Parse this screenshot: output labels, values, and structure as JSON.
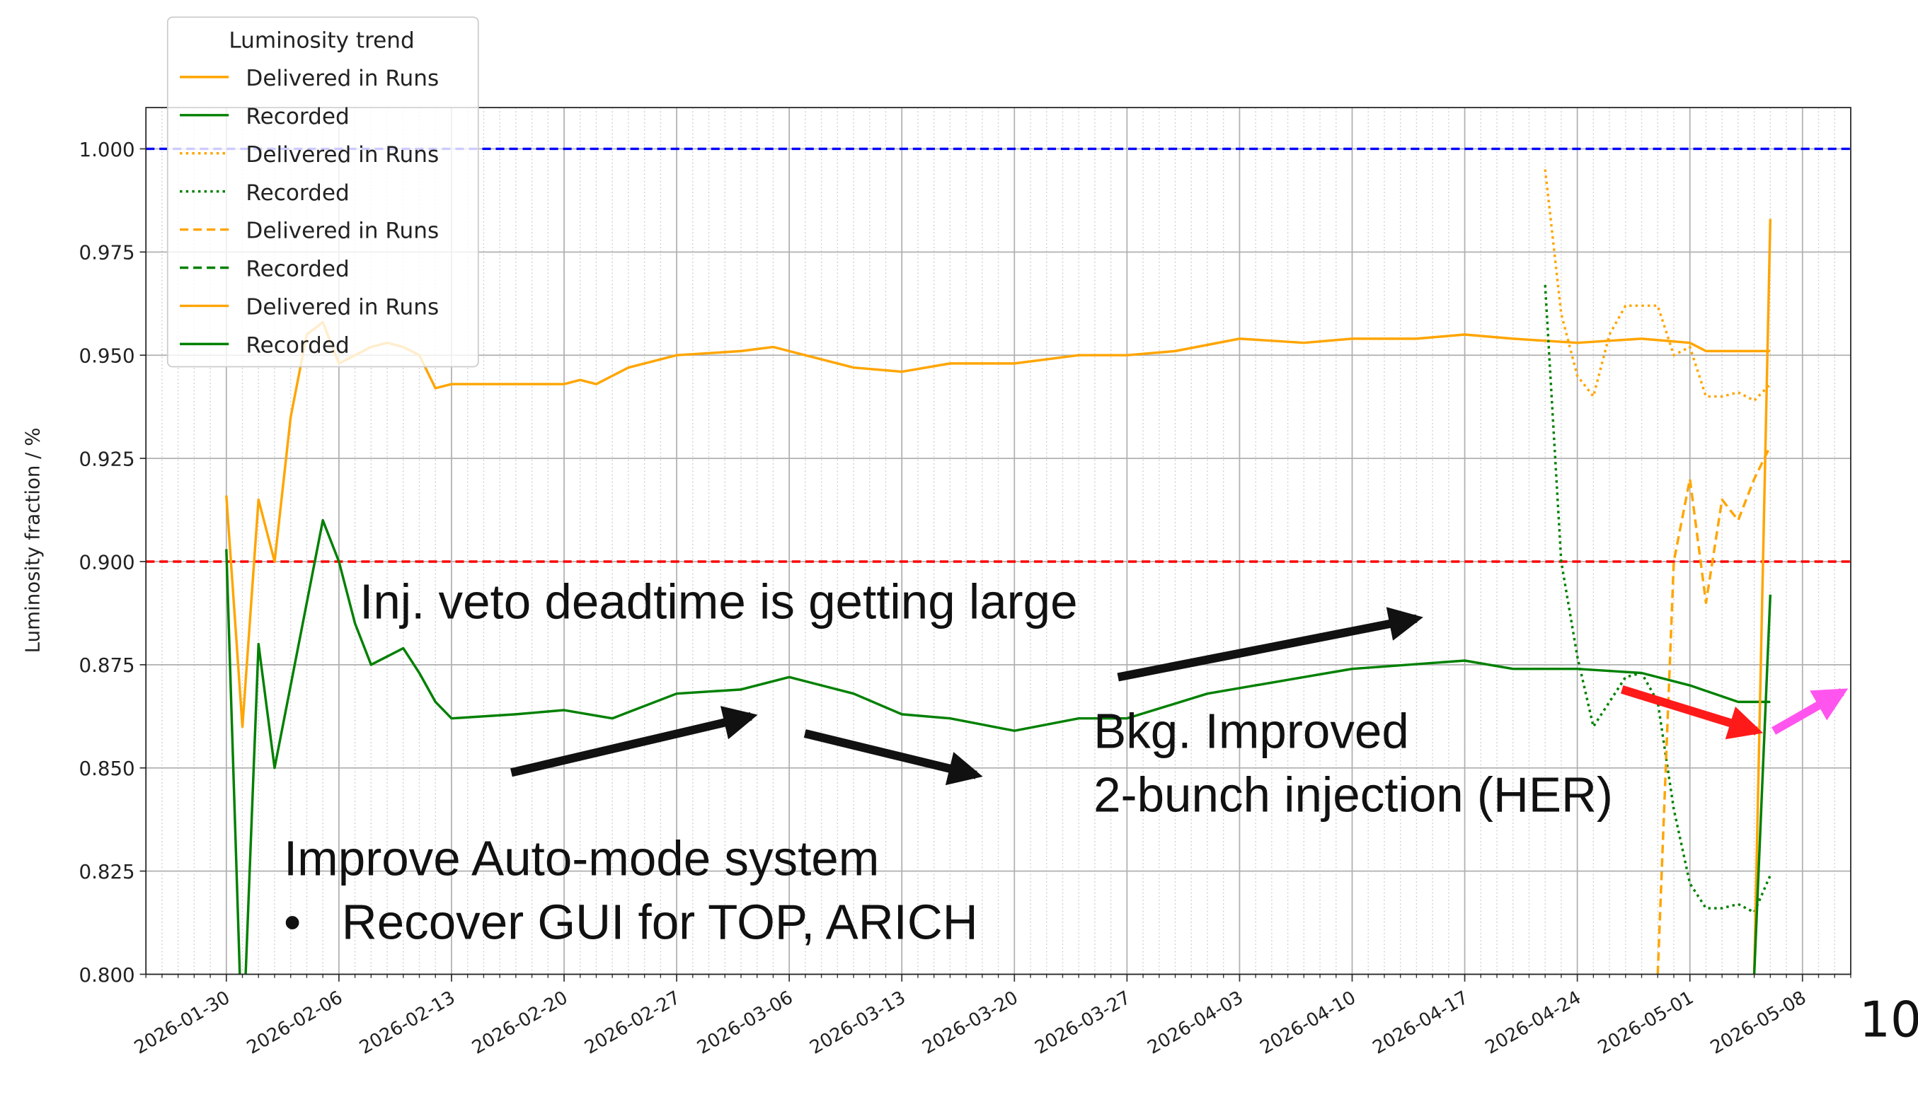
{
  "chart_data": {
    "type": "line",
    "ylabel": "Luminosity fraction / %",
    "legend_title": "Luminosity trend",
    "legend": "upper left",
    "grid": true,
    "xlim": [
      "2026-01-25",
      "2026-05-11"
    ],
    "xticks": [
      "2026-01-30",
      "2026-02-06",
      "2026-02-13",
      "2026-02-20",
      "2026-02-27",
      "2026-03-06",
      "2026-03-13",
      "2026-03-20",
      "2026-03-27",
      "2026-04-03",
      "2026-04-10",
      "2026-04-17",
      "2026-04-24",
      "2026-05-01",
      "2026-05-08"
    ],
    "ylim": [
      0.8,
      1.01
    ],
    "yticks": [
      {
        "value": 0.8,
        "label": "0.800"
      },
      {
        "value": 0.825,
        "label": "0.825"
      },
      {
        "value": 0.85,
        "label": "0.850"
      },
      {
        "value": 0.875,
        "label": "0.875"
      },
      {
        "value": 0.9,
        "label": "0.900"
      },
      {
        "value": 0.925,
        "label": "0.925"
      },
      {
        "value": 0.95,
        "label": "0.950"
      },
      {
        "value": 0.975,
        "label": "0.975"
      },
      {
        "value": 1,
        "label": "1.000"
      }
    ],
    "hlines": [
      {
        "value": 1,
        "color": "#0000ff"
      },
      {
        "value": 0.9,
        "color": "#ff0000"
      }
    ],
    "series": [
      {
        "name": "Delivered in Runs",
        "color": "#ffa500",
        "style": "solid",
        "x": [
          "2026-01-30",
          "2026-01-31",
          "2026-02-01",
          "2026-02-02",
          "2026-02-03",
          "2026-02-04",
          "2026-02-05",
          "2026-02-06",
          "2026-02-07",
          "2026-02-08",
          "2026-02-09",
          "2026-02-10",
          "2026-02-11",
          "2026-02-12",
          "2026-02-13",
          "2026-02-17",
          "2026-02-20",
          "2026-02-21",
          "2026-02-22",
          "2026-02-23",
          "2026-02-24",
          "2026-02-27",
          "2026-03-03",
          "2026-03-05",
          "2026-03-06",
          "2026-03-10",
          "2026-03-13",
          "2026-03-16",
          "2026-03-20",
          "2026-03-24",
          "2026-03-27",
          "2026-03-30",
          "2026-04-03",
          "2026-04-07",
          "2026-04-10",
          "2026-04-14",
          "2026-04-17",
          "2026-04-20",
          "2026-04-24",
          "2026-04-28",
          "2026-05-01",
          "2026-05-02",
          "2026-05-04",
          "2026-05-06"
        ],
        "values": [
          0.916,
          0.86,
          0.915,
          0.9,
          0.935,
          0.955,
          0.958,
          0.948,
          0.95,
          0.952,
          0.953,
          0.952,
          0.95,
          0.942,
          0.943,
          0.943,
          0.943,
          0.944,
          0.943,
          0.945,
          0.947,
          0.95,
          0.951,
          0.952,
          0.951,
          0.947,
          0.946,
          0.948,
          0.948,
          0.95,
          0.95,
          0.951,
          0.954,
          0.953,
          0.954,
          0.954,
          0.955,
          0.954,
          0.953,
          0.954,
          0.953,
          0.951,
          0.951,
          0.951
        ]
      },
      {
        "name": "Recorded",
        "color": "#008000",
        "style": "solid",
        "x": [
          "2026-01-30",
          "2026-01-31",
          "2026-02-01",
          "2026-02-02",
          "2026-02-03",
          "2026-02-04",
          "2026-02-05",
          "2026-02-06",
          "2026-02-07",
          "2026-02-08",
          "2026-02-09",
          "2026-02-10",
          "2026-02-11",
          "2026-02-12",
          "2026-02-13",
          "2026-02-17",
          "2026-02-20",
          "2026-02-23",
          "2026-02-27",
          "2026-03-03",
          "2026-03-06",
          "2026-03-10",
          "2026-03-13",
          "2026-03-16",
          "2026-03-20",
          "2026-03-24",
          "2026-03-27",
          "2026-04-01",
          "2026-04-07",
          "2026-04-10",
          "2026-04-17",
          "2026-04-20",
          "2026-04-24",
          "2026-04-28",
          "2026-05-01",
          "2026-05-04",
          "2026-05-06"
        ],
        "values": [
          0.903,
          0.78,
          0.88,
          0.85,
          0.87,
          0.89,
          0.91,
          0.9,
          0.885,
          0.875,
          0.877,
          0.879,
          0.873,
          0.866,
          0.862,
          0.863,
          0.864,
          0.862,
          0.868,
          0.869,
          0.872,
          0.868,
          0.863,
          0.862,
          0.859,
          0.862,
          0.862,
          0.868,
          0.872,
          0.874,
          0.876,
          0.874,
          0.874,
          0.873,
          0.87,
          0.866,
          0.866
        ]
      },
      {
        "name": "Delivered in Runs",
        "color": "#ffa500",
        "style": "dotted",
        "x": [
          "2026-04-22",
          "2026-04-23",
          "2026-04-24",
          "2026-04-25",
          "2026-04-26",
          "2026-04-27",
          "2026-04-28",
          "2026-04-29",
          "2026-04-30",
          "2026-05-01",
          "2026-05-02",
          "2026-05-03",
          "2026-05-04",
          "2026-05-05",
          "2026-05-06"
        ],
        "values": [
          0.995,
          0.96,
          0.945,
          0.94,
          0.955,
          0.962,
          0.962,
          0.962,
          0.95,
          0.952,
          0.94,
          0.94,
          0.941,
          0.939,
          0.943
        ]
      },
      {
        "name": "Recorded",
        "color": "#008000",
        "style": "dotted",
        "x": [
          "2026-04-22",
          "2026-04-23",
          "2026-04-24",
          "2026-04-25",
          "2026-04-26",
          "2026-04-27",
          "2026-04-28",
          "2026-04-29",
          "2026-04-30",
          "2026-05-01",
          "2026-05-02",
          "2026-05-03",
          "2026-05-04",
          "2026-05-05",
          "2026-05-06"
        ],
        "values": [
          0.967,
          0.9,
          0.877,
          0.86,
          0.866,
          0.872,
          0.873,
          0.866,
          0.84,
          0.822,
          0.816,
          0.816,
          0.817,
          0.815,
          0.824
        ]
      },
      {
        "name": "Delivered in Runs",
        "color": "#ffa500",
        "style": "dashed",
        "x": [
          "2026-04-29",
          "2026-04-30",
          "2026-05-01",
          "2026-05-02",
          "2026-05-03",
          "2026-05-04",
          "2026-05-05",
          "2026-05-06"
        ],
        "values": [
          0.8,
          0.9,
          0.92,
          0.89,
          0.915,
          0.91,
          0.92,
          0.928
        ]
      },
      {
        "name": "Recorded",
        "color": "#008000",
        "style": "dashed",
        "x": [
          "2026-04-29",
          "2026-05-06"
        ],
        "values": [
          0.79,
          0.79
        ]
      },
      {
        "name": "Delivered in Runs",
        "color": "#ffa500",
        "style": "solid",
        "x": [
          "2026-05-05",
          "2026-05-06"
        ],
        "values": [
          0.8,
          0.983
        ]
      },
      {
        "name": "Recorded",
        "color": "#008000",
        "style": "solid",
        "x": [
          "2026-05-05",
          "2026-05-06"
        ],
        "values": [
          0.8,
          0.892
        ]
      }
    ],
    "annotations": [
      "Inj. veto deadtime is getting large",
      "Bkg. Improved",
      "2-bunch injection (HER)",
      "Improve Auto-mode system",
      "•   Recover GUI for TOP, ARICH"
    ]
  },
  "page_number": "10"
}
